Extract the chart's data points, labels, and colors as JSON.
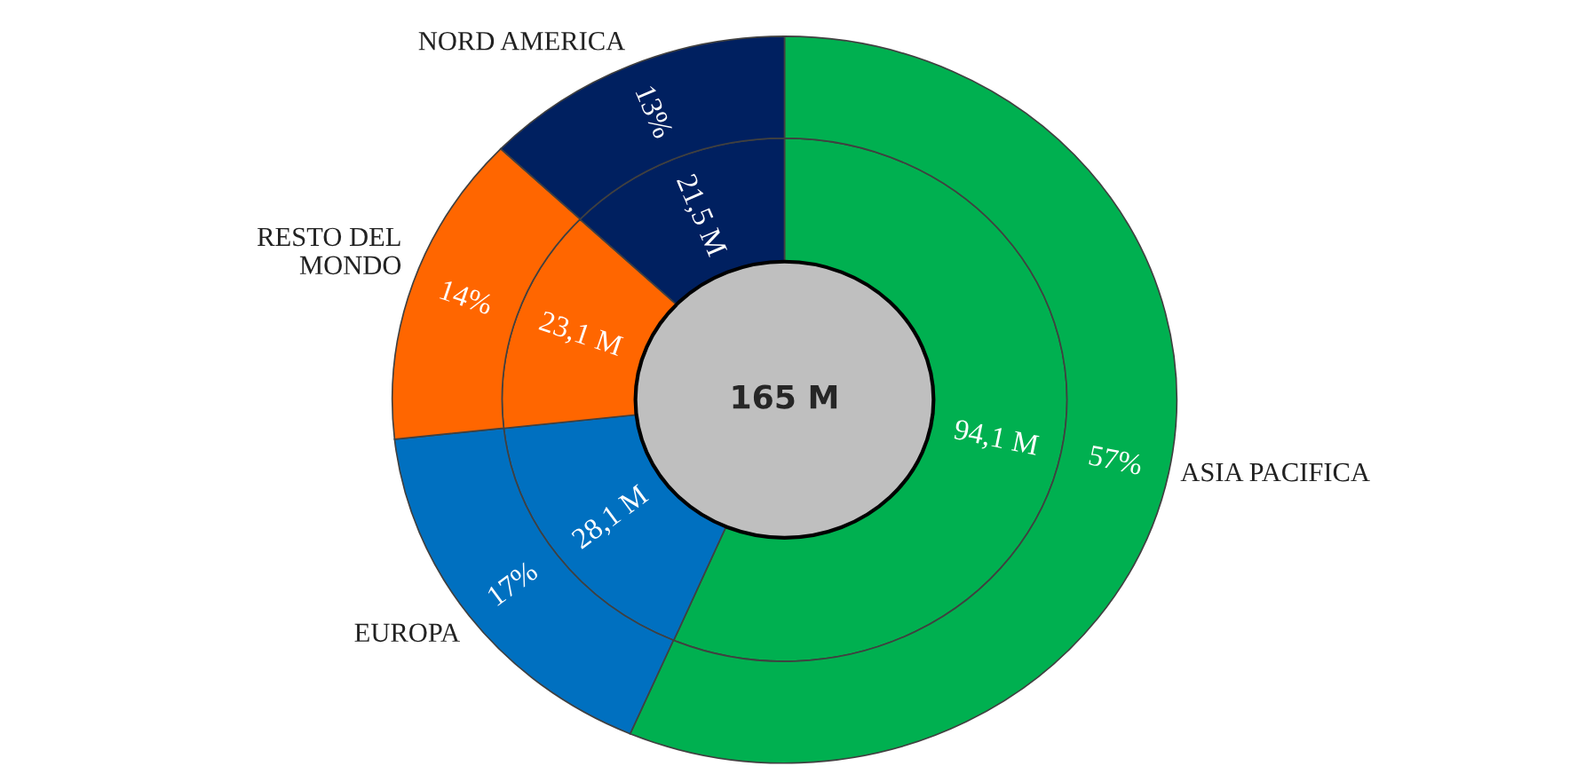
{
  "chart_data": {
    "type": "donut",
    "categories": [
      "ASIA PACIFICA",
      "EUROPA",
      "RESTO DEL\nMONDO",
      "NORD AMERICA"
    ],
    "colors": [
      "#00b050",
      "#0070c0",
      "#ff6600",
      "#002060"
    ],
    "series": [
      {
        "values": [
          94.1,
          28.1,
          23.1,
          21.5
        ],
        "value_labels": [
          "94,1 M",
          "28,1 M",
          "23,1 M",
          "21,5 M"
        ]
      },
      {
        "values": [
          57,
          17,
          14,
          13
        ],
        "value_labels": [
          "57%",
          "17%",
          "14%",
          "13%"
        ]
      }
    ],
    "annotations": [
      "165 M"
    ],
    "legend": false
  }
}
